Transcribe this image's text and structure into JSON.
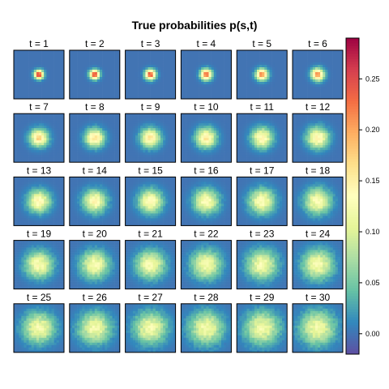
{
  "chart_data": {
    "type": "heatmap",
    "title": "True probabilities p(s,t)",
    "panels": [
      {
        "t": 1,
        "label": "t = 1"
      },
      {
        "t": 2,
        "label": "t = 2"
      },
      {
        "t": 3,
        "label": "t = 3"
      },
      {
        "t": 4,
        "label": "t = 4"
      },
      {
        "t": 5,
        "label": "t = 5"
      },
      {
        "t": 6,
        "label": "t = 6"
      },
      {
        "t": 7,
        "label": "t = 7"
      },
      {
        "t": 8,
        "label": "t = 8"
      },
      {
        "t": 9,
        "label": "t = 9"
      },
      {
        "t": 10,
        "label": "t = 10"
      },
      {
        "t": 11,
        "label": "t = 11"
      },
      {
        "t": 12,
        "label": "t = 12"
      },
      {
        "t": 13,
        "label": "t = 13"
      },
      {
        "t": 14,
        "label": "t = 14"
      },
      {
        "t": 15,
        "label": "t = 15"
      },
      {
        "t": 16,
        "label": "t = 16"
      },
      {
        "t": 17,
        "label": "t = 17"
      },
      {
        "t": 18,
        "label": "t = 18"
      },
      {
        "t": 19,
        "label": "t = 19"
      },
      {
        "t": 20,
        "label": "t = 20"
      },
      {
        "t": 21,
        "label": "t = 21"
      },
      {
        "t": 22,
        "label": "t = 22"
      },
      {
        "t": 23,
        "label": "t = 23"
      },
      {
        "t": 24,
        "label": "t = 24"
      },
      {
        "t": 25,
        "label": "t = 25"
      },
      {
        "t": 26,
        "label": "t = 26"
      },
      {
        "t": 27,
        "label": "t = 27"
      },
      {
        "t": 28,
        "label": "t = 28"
      },
      {
        "t": 29,
        "label": "t = 29"
      },
      {
        "t": 30,
        "label": "t = 30"
      }
    ],
    "colorbar": {
      "range": [
        -0.02,
        0.29
      ],
      "ticks": [
        0.0,
        0.05,
        0.1,
        0.15,
        0.2,
        0.25
      ],
      "tick_labels": [
        "0.00",
        "0.05",
        "0.10",
        "0.15",
        "0.20",
        "0.25"
      ],
      "palette": [
        "#5E4FA2",
        "#3288BD",
        "#66C2A5",
        "#ABDDA4",
        "#E6F598",
        "#FFFFBF",
        "#FEE08B",
        "#FDAE61",
        "#F46D43",
        "#D53E4F",
        "#9E0142"
      ]
    },
    "background_value": 0.0,
    "peak_values": [
      0.27,
      0.26,
      0.25,
      0.24,
      0.22,
      0.21,
      0.17,
      0.165,
      0.16,
      0.155,
      0.15,
      0.148,
      0.145,
      0.142,
      0.14,
      0.138,
      0.136,
      0.134,
      0.132,
      0.13,
      0.128,
      0.127,
      0.126,
      0.125,
      0.124,
      0.123,
      0.122,
      0.121,
      0.12,
      0.12
    ],
    "spread_sigma": [
      1.2,
      1.3,
      1.4,
      1.5,
      1.6,
      1.7,
      2.4,
      2.5,
      2.6,
      2.7,
      2.8,
      2.9,
      3.0,
      3.1,
      3.2,
      3.3,
      3.4,
      3.5,
      3.6,
      3.7,
      3.8,
      3.9,
      4.0,
      4.1,
      4.2,
      4.3,
      4.4,
      4.5,
      4.6,
      4.7
    ],
    "grid_size": 20
  }
}
